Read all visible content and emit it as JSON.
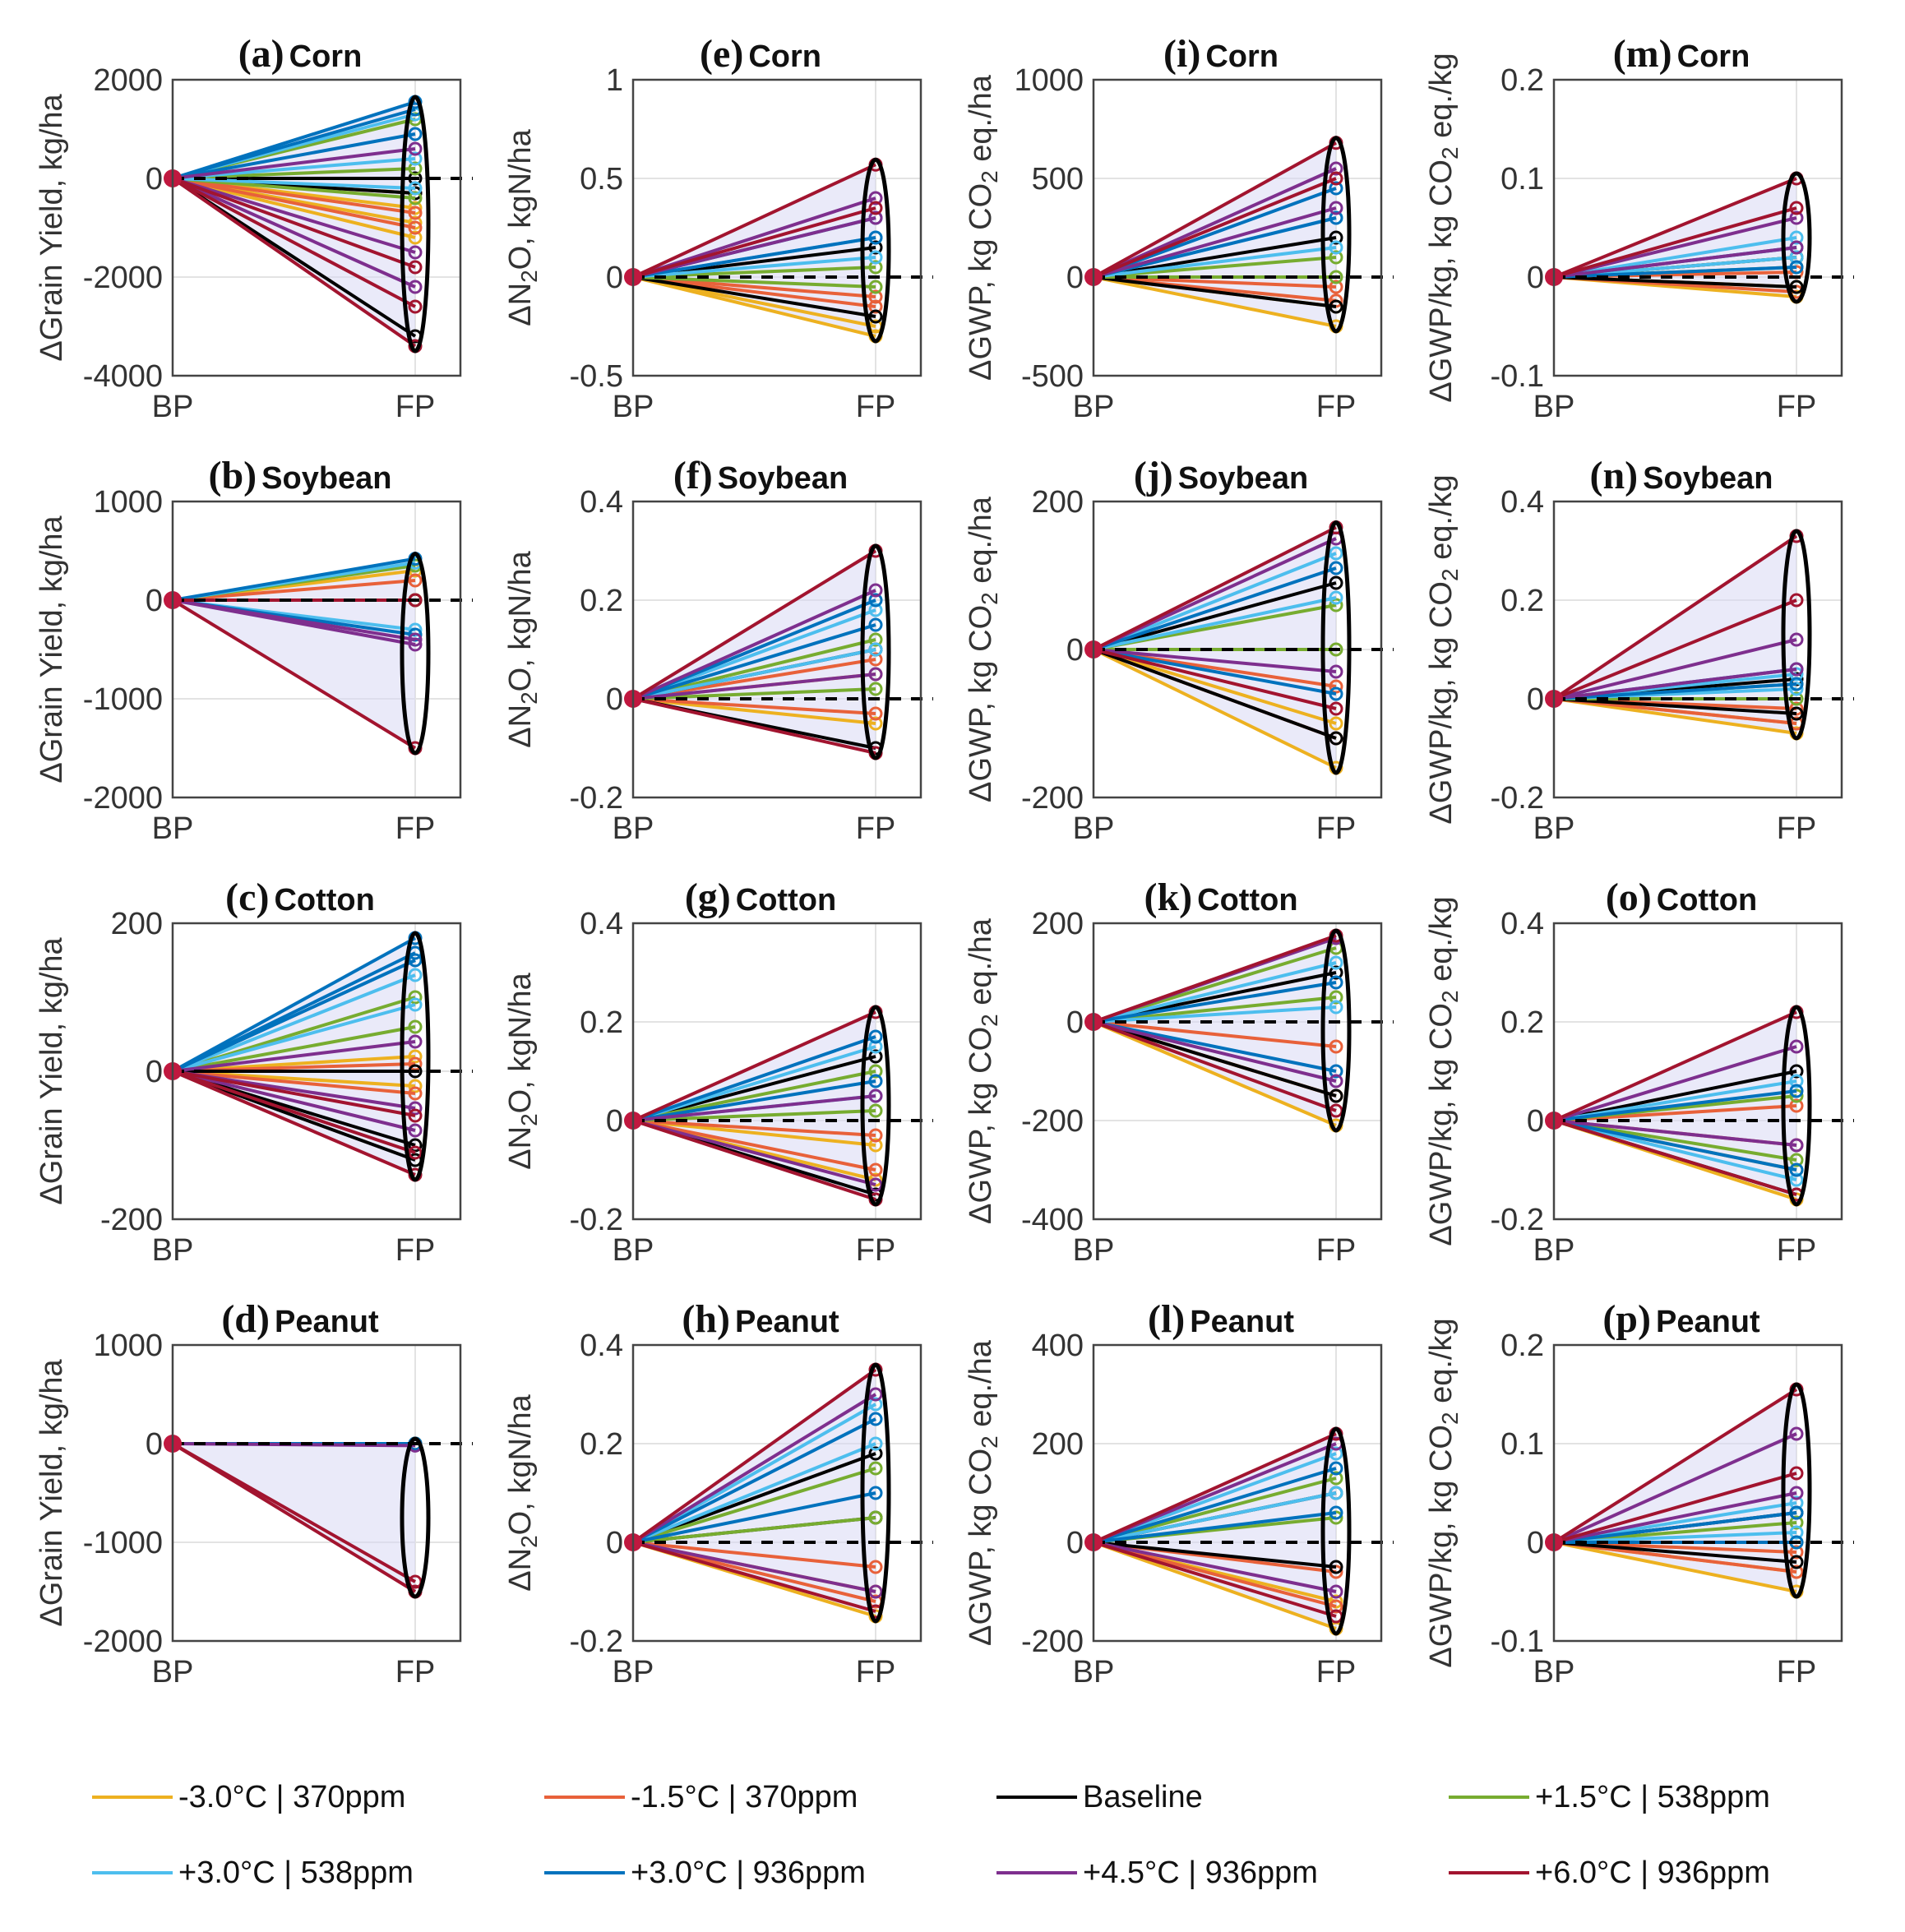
{
  "chart_data": {
    "type": "line",
    "title": "",
    "categories": [
      "BP",
      "FP"
    ],
    "legend": {
      "placement": "bottom",
      "entries": [
        {
          "label": "-3.0°C | 370ppm",
          "color": "#EDB120"
        },
        {
          "label": "-1.5°C | 370ppm",
          "color": "#E8613A"
        },
        {
          "label": "Baseline",
          "color": "#000000"
        },
        {
          "label": "+1.5°C | 538ppm",
          "color": "#77AC30"
        },
        {
          "label": "+3.0°C | 538ppm",
          "color": "#4DBEEE"
        },
        {
          "label": "+3.0°C | 936ppm",
          "color": "#0072BD"
        },
        {
          "label": "+4.5°C | 936ppm",
          "color": "#7E2F8E"
        },
        {
          "label": "+6.0°C | 936ppm",
          "color": "#A2142F"
        }
      ]
    },
    "panels": [
      {
        "id": "a",
        "label": "(a)",
        "crop": "Corn",
        "ylabel": "ΔGrain Yield, kg/ha",
        "ylim": [
          -4000,
          2000
        ],
        "yticks": [
          "2000",
          "0",
          "-2000",
          "-4000"
        ],
        "fp_values": {
          "-3.0°C | 370ppm": [
            -600,
            -900,
            -1200
          ],
          "-1.5°C | 370ppm": [
            -300,
            -700,
            -1000
          ],
          "Baseline": [
            0,
            -300,
            -3200
          ],
          "+1.5°C | 538ppm": [
            1200,
            200,
            -400
          ],
          "+3.0°C | 538ppm": [
            1300,
            400,
            -200
          ],
          "+3.0°C | 936ppm": [
            1550,
            1400,
            900
          ],
          "+4.5°C | 936ppm": [
            600,
            -1500,
            -2200
          ],
          "+6.0°C | 936ppm": [
            -1800,
            -2600,
            -3400
          ]
        }
      },
      {
        "id": "b",
        "label": "(b)",
        "crop": "Soybean",
        "ylabel": "ΔGrain Yield, kg/ha",
        "ylim": [
          -2000,
          1000
        ],
        "yticks": [
          "1000",
          "0",
          "-1000",
          "-2000"
        ],
        "fp_values": {
          "-3.0°C | 370ppm": [
            300,
            0
          ],
          "-1.5°C | 370ppm": [
            200,
            0
          ],
          "Baseline": [
            0
          ],
          "+1.5°C | 538ppm": [
            350,
            0
          ],
          "+3.0°C | 538ppm": [
            380,
            -300
          ],
          "+3.0°C | 936ppm": [
            420,
            -350
          ],
          "+4.5°C | 936ppm": [
            -400,
            -450
          ],
          "+6.0°C | 936ppm": [
            -1500,
            0
          ]
        }
      },
      {
        "id": "c",
        "label": "(c)",
        "crop": "Cotton",
        "ylabel": "ΔGrain Yield, kg/ha",
        "ylim": [
          -200,
          200
        ],
        "yticks": [
          "200",
          "0",
          "-200"
        ],
        "fp_values": {
          "-3.0°C | 370ppm": [
            20,
            -20
          ],
          "-1.5°C | 370ppm": [
            10,
            -30
          ],
          "Baseline": [
            0,
            -100,
            -120
          ],
          "+1.5°C | 538ppm": [
            100,
            60
          ],
          "+3.0°C | 538ppm": [
            130,
            90
          ],
          "+3.0°C | 936ppm": [
            180,
            160,
            150
          ],
          "+4.5°C | 936ppm": [
            40,
            -50,
            -80
          ],
          "+6.0°C | 936ppm": [
            -60,
            -110,
            -140
          ]
        }
      },
      {
        "id": "d",
        "label": "(d)",
        "crop": "Peanut",
        "ylabel": "ΔGrain Yield, kg/ha",
        "ylim": [
          -2000,
          1000
        ],
        "yticks": [
          "1000",
          "0",
          "-1000",
          "-2000"
        ],
        "fp_values": {
          "-3.0°C | 370ppm": [
            0
          ],
          "-1.5°C | 370ppm": [
            0
          ],
          "Baseline": [
            0
          ],
          "+1.5°C | 538ppm": [
            0
          ],
          "+3.0°C | 538ppm": [
            0
          ],
          "+3.0°C | 936ppm": [
            0
          ],
          "+4.5°C | 936ppm": [
            -20
          ],
          "+6.0°C | 936ppm": [
            -1400,
            -1500
          ]
        }
      },
      {
        "id": "e",
        "label": "(e)",
        "crop": "Corn",
        "ylabel": "ΔN2O, kgN/ha",
        "ylim": [
          -0.5,
          1
        ],
        "yticks": [
          "1",
          "0.5",
          "0",
          "-0.5"
        ],
        "fp_values": {
          "-3.0°C | 370ppm": [
            -0.25,
            -0.3
          ],
          "-1.5°C | 370ppm": [
            -0.1,
            -0.15
          ],
          "Baseline": [
            0.15,
            -0.2
          ],
          "+1.5°C | 538ppm": [
            0.05,
            -0.05
          ],
          "+3.0°C | 538ppm": [
            0.2,
            0.1
          ],
          "+3.0°C | 936ppm": [
            0.3,
            0.2
          ],
          "+4.5°C | 936ppm": [
            0.4,
            0.3
          ],
          "+6.0°C | 936ppm": [
            0.57,
            0.35
          ]
        }
      },
      {
        "id": "f",
        "label": "(f)",
        "crop": "Soybean",
        "ylabel": "ΔN2O, kgN/ha",
        "ylim": [
          -0.2,
          0.4
        ],
        "yticks": [
          "0.4",
          "0.2",
          "0",
          "-0.2"
        ],
        "fp_values": {
          "-3.0°C | 370ppm": [
            0.05,
            -0.05
          ],
          "-1.5°C | 370ppm": [
            0.08,
            -0.03
          ],
          "Baseline": [
            0.1,
            -0.1
          ],
          "+1.5°C | 538ppm": [
            0.12,
            0.02
          ],
          "+3.0°C | 538ppm": [
            0.18,
            0.1
          ],
          "+3.0°C | 936ppm": [
            0.2,
            0.15
          ],
          "+4.5°C | 936ppm": [
            0.22,
            0.05
          ],
          "+6.0°C | 936ppm": [
            0.3,
            -0.11
          ]
        }
      },
      {
        "id": "g",
        "label": "(g)",
        "crop": "Cotton",
        "ylabel": "ΔN2O, kgN/ha",
        "ylim": [
          -0.2,
          0.4
        ],
        "yticks": [
          "0.4",
          "0.2",
          "0",
          "-0.2"
        ],
        "fp_values": {
          "-3.0°C | 370ppm": [
            -0.05,
            -0.12
          ],
          "-1.5°C | 370ppm": [
            -0.03,
            -0.1
          ],
          "Baseline": [
            0.13,
            -0.15
          ],
          "+1.5°C | 538ppm": [
            0.1,
            0.02
          ],
          "+3.0°C | 538ppm": [
            0.15,
            0.05
          ],
          "+3.0°C | 936ppm": [
            0.17,
            0.08
          ],
          "+4.5°C | 936ppm": [
            0.05,
            -0.13
          ],
          "+6.0°C | 936ppm": [
            0.22,
            -0.16
          ]
        }
      },
      {
        "id": "h",
        "label": "(h)",
        "crop": "Peanut",
        "ylabel": "ΔN2O, kgN/ha",
        "ylim": [
          -0.2,
          0.4
        ],
        "yticks": [
          "0.4",
          "0.2",
          "0",
          "-0.2"
        ],
        "fp_values": {
          "-3.0°C | 370ppm": [
            -0.1,
            -0.15
          ],
          "-1.5°C | 370ppm": [
            -0.05,
            -0.12
          ],
          "Baseline": [
            0.18,
            0.05
          ],
          "+1.5°C | 538ppm": [
            0.15,
            0.05
          ],
          "+3.0°C | 538ppm": [
            0.28,
            0.2
          ],
          "+3.0°C | 936ppm": [
            0.25,
            0.1
          ],
          "+4.5°C | 936ppm": [
            0.3,
            -0.1
          ],
          "+6.0°C | 936ppm": [
            0.35,
            -0.14
          ]
        }
      },
      {
        "id": "i",
        "label": "(i)",
        "crop": "Corn",
        "ylabel": "ΔGWP, kg CO2 eq./ha",
        "ylim": [
          -500,
          1000
        ],
        "yticks": [
          "1000",
          "500",
          "0",
          "-500"
        ],
        "fp_values": {
          "-3.0°C | 370ppm": [
            -150,
            -250
          ],
          "-1.5°C | 370ppm": [
            -50,
            -120
          ],
          "Baseline": [
            200,
            -150
          ],
          "+1.5°C | 538ppm": [
            100,
            0
          ],
          "+3.0°C | 538ppm": [
            300,
            150
          ],
          "+3.0°C | 936ppm": [
            450,
            300
          ],
          "+4.5°C | 936ppm": [
            550,
            350
          ],
          "+6.0°C | 936ppm": [
            680,
            500
          ]
        }
      },
      {
        "id": "j",
        "label": "(j)",
        "crop": "Soybean",
        "ylabel": "ΔGWP, kg CO2 eq./ha",
        "ylim": [
          -200,
          200
        ],
        "yticks": [
          "200",
          "0",
          "-200"
        ],
        "fp_values": {
          "-3.0°C | 370ppm": [
            -100,
            -160
          ],
          "-1.5°C | 370ppm": [
            -50,
            -120
          ],
          "Baseline": [
            90,
            -120
          ],
          "+1.5°C | 538ppm": [
            60,
            0
          ],
          "+3.0°C | 538ppm": [
            130,
            70
          ],
          "+3.0°C | 936ppm": [
            110,
            -60
          ],
          "+4.5°C | 936ppm": [
            150,
            -30
          ],
          "+6.0°C | 936ppm": [
            165,
            -80
          ]
        }
      },
      {
        "id": "k",
        "label": "(k)",
        "crop": "Cotton",
        "ylabel": "ΔGWP, kg CO2 eq./ha",
        "ylim": [
          -400,
          200
        ],
        "yticks": [
          "200",
          "0",
          "-200",
          "-400"
        ],
        "fp_values": {
          "-3.0°C | 370ppm": [
            -150,
            -210
          ],
          "-1.5°C | 370ppm": [
            -50,
            -150
          ],
          "Baseline": [
            100,
            -150
          ],
          "+1.5°C | 538ppm": [
            150,
            50
          ],
          "+3.0°C | 538ppm": [
            120,
            30
          ],
          "+3.0°C | 936ppm": [
            80,
            -100
          ],
          "+4.5°C | 936ppm": [
            170,
            -120
          ],
          "+6.0°C | 936ppm": [
            175,
            -180
          ]
        }
      },
      {
        "id": "l",
        "label": "(l)",
        "crop": "Peanut",
        "ylabel": "ΔGWP, kg CO2 eq./ha",
        "ylim": [
          -200,
          400
        ],
        "yticks": [
          "400",
          "200",
          "0",
          "-200"
        ],
        "fp_values": {
          "-3.0°C | 370ppm": [
            -120,
            -175
          ],
          "-1.5°C | 370ppm": [
            -60,
            -130
          ],
          "Baseline": [
            100,
            -50
          ],
          "+1.5°C | 538ppm": [
            130,
            50
          ],
          "+3.0°C | 538ppm": [
            180,
            100
          ],
          "+3.0°C | 936ppm": [
            150,
            60
          ],
          "+4.5°C | 936ppm": [
            200,
            -100
          ],
          "+6.0°C | 936ppm": [
            220,
            -150
          ]
        }
      },
      {
        "id": "m",
        "label": "(m)",
        "crop": "Corn",
        "ylabel": "ΔGWP/kg, kg CO2 eq./kg",
        "ylim": [
          -0.1,
          0.2
        ],
        "yticks": [
          "0.2",
          "0.1",
          "0",
          "-0.1"
        ],
        "fp_values": {
          "-3.0°C | 370ppm": [
            -0.01,
            -0.02
          ],
          "-1.5°C | 370ppm": [
            0.005,
            -0.015
          ],
          "Baseline": [
            0.02,
            -0.01
          ],
          "+1.5°C | 538ppm": [
            0.02,
            0.01
          ],
          "+3.0°C | 538ppm": [
            0.04,
            0.02
          ],
          "+3.0°C | 936ppm": [
            0.03,
            0.01
          ],
          "+4.5°C | 936ppm": [
            0.06,
            0.03
          ],
          "+6.0°C | 936ppm": [
            0.1,
            0.07
          ]
        }
      },
      {
        "id": "n",
        "label": "(n)",
        "crop": "Soybean",
        "ylabel": "ΔGWP/kg, kg CO2 eq./kg",
        "ylim": [
          -0.2,
          0.4
        ],
        "yticks": [
          "0.4",
          "0.2",
          "0",
          "-0.2"
        ],
        "fp_values": {
          "-3.0°C | 370ppm": [
            -0.05,
            -0.07
          ],
          "-1.5°C | 370ppm": [
            -0.02,
            -0.05
          ],
          "Baseline": [
            0.04,
            -0.03
          ],
          "+1.5°C | 538ppm": [
            0.03,
            0.0
          ],
          "+3.0°C | 538ppm": [
            0.05,
            0.02
          ],
          "+3.0°C | 936ppm": [
            0.06,
            0.03
          ],
          "+4.5°C | 936ppm": [
            0.12,
            0.06
          ],
          "+6.0°C | 936ppm": [
            0.33,
            0.2
          ]
        }
      },
      {
        "id": "o",
        "label": "(o)",
        "crop": "Cotton",
        "ylabel": "ΔGWP/kg, kg CO2 eq./kg",
        "ylim": [
          -0.2,
          0.4
        ],
        "yticks": [
          "0.4",
          "0.2",
          "0",
          "-0.2"
        ],
        "fp_values": {
          "-3.0°C | 370ppm": [
            -0.1,
            -0.16
          ],
          "-1.5°C | 370ppm": [
            0.03,
            -0.05
          ],
          "Baseline": [
            0.1,
            -0.15
          ],
          "+1.5°C | 538ppm": [
            0.05,
            -0.08
          ],
          "+3.0°C | 538ppm": [
            0.08,
            -0.12
          ],
          "+3.0°C | 936ppm": [
            0.06,
            -0.1
          ],
          "+4.5°C | 936ppm": [
            0.15,
            -0.05
          ],
          "+6.0°C | 936ppm": [
            0.22,
            -0.15
          ]
        }
      },
      {
        "id": "p",
        "label": "(p)",
        "crop": "Peanut",
        "ylabel": "ΔGWP/kg, kg CO2 eq./kg",
        "ylim": [
          -0.1,
          0.2
        ],
        "yticks": [
          "0.2",
          "0.1",
          "0",
          "-0.1"
        ],
        "fp_values": {
          "-3.0°C | 370ppm": [
            -0.03,
            -0.05
          ],
          "-1.5°C | 370ppm": [
            -0.01,
            -0.03
          ],
          "Baseline": [
            0.03,
            -0.02
          ],
          "+1.5°C | 538ppm": [
            0.02,
            0.0
          ],
          "+3.0°C | 538ppm": [
            0.04,
            0.01
          ],
          "+3.0°C | 936ppm": [
            0.03,
            0.0
          ],
          "+4.5°C | 936ppm": [
            0.11,
            0.05
          ],
          "+6.0°C | 936ppm": [
            0.155,
            0.07
          ]
        }
      }
    ]
  }
}
